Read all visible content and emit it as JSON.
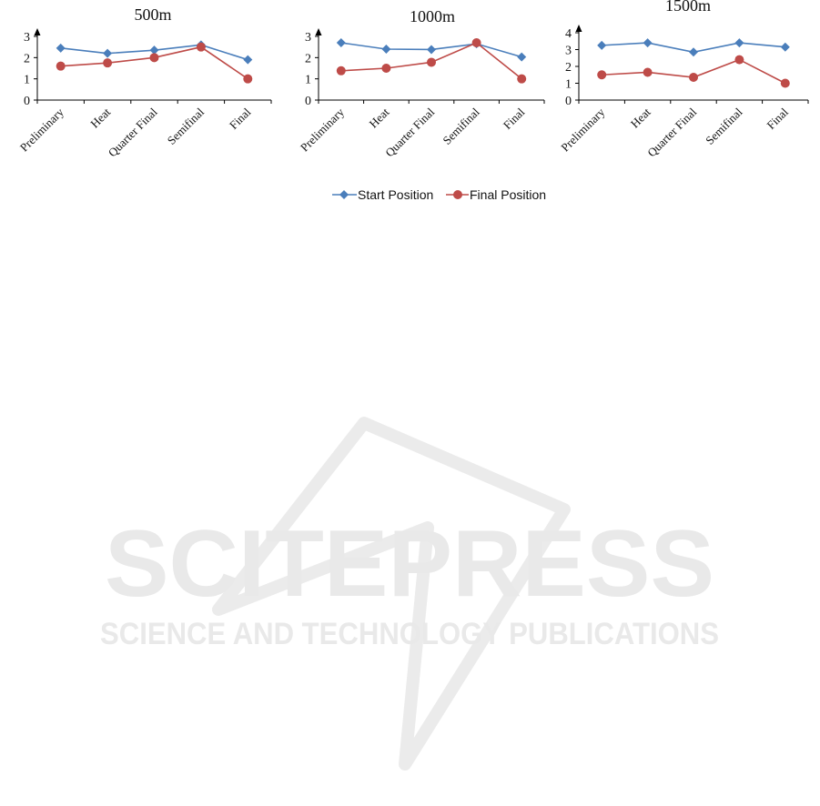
{
  "legend": {
    "start_label": "Start Position",
    "final_label": "Final Position"
  },
  "colors": {
    "start": "#4a7ebb",
    "final": "#be4b48"
  },
  "chart_data": [
    {
      "type": "line",
      "title": "500m",
      "categories": [
        "Preliminary",
        "Heat",
        "Quarter Final",
        "Semifinal",
        "Final"
      ],
      "ylim": [
        0,
        3
      ],
      "yticks": [
        0,
        1,
        2,
        3
      ],
      "series": [
        {
          "name": "Start Position",
          "values": [
            2.45,
            2.2,
            2.35,
            2.6,
            1.9
          ]
        },
        {
          "name": "Final Position",
          "values": [
            1.6,
            1.75,
            2.0,
            2.5,
            1.0
          ]
        }
      ],
      "legend": "bottom"
    },
    {
      "type": "line",
      "title": "1000m",
      "categories": [
        "Preliminary",
        "Heat",
        "Quarter Final",
        "Semifinal",
        "Final"
      ],
      "ylim": [
        0,
        3
      ],
      "yticks": [
        0,
        1,
        2,
        3
      ],
      "series": [
        {
          "name": "Start Position",
          "values": [
            2.7,
            2.4,
            2.38,
            2.65,
            2.03
          ]
        },
        {
          "name": "Final Position",
          "values": [
            1.38,
            1.5,
            1.78,
            2.7,
            1.0
          ]
        }
      ],
      "legend": "bottom"
    },
    {
      "type": "line",
      "title": "1500m",
      "categories": [
        "Preliminary",
        "Heat",
        "Quarter Final",
        "Semifinal",
        "Final"
      ],
      "ylim": [
        0,
        4
      ],
      "yticks": [
        0,
        1,
        2,
        3,
        4
      ],
      "series": [
        {
          "name": "Start Position",
          "values": [
            3.25,
            3.4,
            2.85,
            3.4,
            3.15
          ]
        },
        {
          "name": "Final Position",
          "values": [
            1.5,
            1.65,
            1.35,
            2.4,
            1.0
          ]
        }
      ],
      "legend": "bottom"
    }
  ],
  "watermark": {
    "main": "SCITEPRESS",
    "sub": "SCIENCE AND TECHNOLOGY PUBLICATIONS"
  }
}
